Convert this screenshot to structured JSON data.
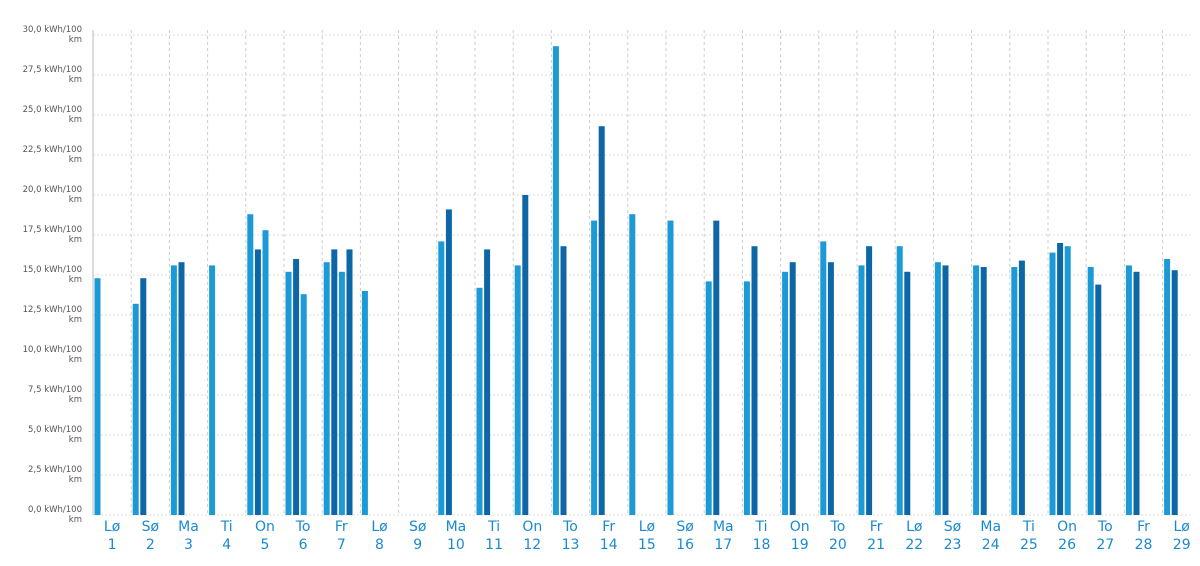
{
  "chart_data": {
    "type": "bar",
    "weekdays": [
      "Lø",
      "Sø",
      "Ma",
      "Ti",
      "On",
      "To",
      "Fr",
      "Lø",
      "Sø",
      "Ma",
      "Ti",
      "On",
      "To",
      "Fr",
      "Lø",
      "Sø",
      "Ma",
      "Ti",
      "On",
      "To",
      "Fr",
      "Lø",
      "Sø",
      "Ma",
      "Ti",
      "On",
      "To",
      "Fr",
      "Lø"
    ],
    "categories": [
      "1",
      "2",
      "3",
      "4",
      "5",
      "6",
      "7",
      "8",
      "9",
      "10",
      "11",
      "12",
      "13",
      "14",
      "15",
      "16",
      "17",
      "18",
      "19",
      "20",
      "21",
      "22",
      "23",
      "24",
      "25",
      "26",
      "27",
      "28",
      "29"
    ],
    "series": [
      {
        "color": "#1b9ad6",
        "values": [
          14.8,
          13.2,
          15.6,
          15.6,
          18.8,
          15.2,
          15.8,
          14.0,
          null,
          17.1,
          14.2,
          15.6,
          29.3,
          18.4,
          18.8,
          18.4,
          14.6,
          14.6,
          15.2,
          17.1,
          15.6,
          16.8,
          15.8,
          15.6,
          15.5,
          16.4,
          15.5,
          15.6,
          16.0
        ]
      },
      {
        "color": "#0d67a6",
        "values": [
          null,
          14.8,
          15.8,
          null,
          16.6,
          16.0,
          16.6,
          null,
          null,
          19.1,
          16.6,
          20.0,
          16.8,
          24.3,
          null,
          null,
          18.4,
          16.8,
          15.8,
          15.8,
          16.8,
          15.2,
          15.6,
          15.5,
          15.9,
          17.0,
          14.4,
          15.2,
          15.3
        ]
      },
      {
        "color": "#1b9ad6",
        "values": [
          null,
          null,
          null,
          null,
          17.8,
          13.8,
          15.2,
          null,
          null,
          null,
          null,
          null,
          null,
          null,
          null,
          null,
          null,
          null,
          null,
          null,
          null,
          null,
          null,
          null,
          null,
          16.8,
          null,
          null,
          null
        ]
      },
      {
        "color": "#0d67a6",
        "values": [
          null,
          null,
          null,
          null,
          null,
          null,
          16.6,
          null,
          null,
          null,
          null,
          null,
          null,
          null,
          null,
          null,
          null,
          null,
          null,
          null,
          null,
          null,
          null,
          null,
          null,
          null,
          null,
          null,
          null
        ]
      }
    ],
    "ylim": [
      0,
      30
    ],
    "yticks": [
      {
        "value": 0,
        "label": "0,0 kWh/100 km"
      },
      {
        "value": 2.5,
        "label": "2,5 kWh/100 km"
      },
      {
        "value": 5,
        "label": "5,0 kWh/100 km"
      },
      {
        "value": 7.5,
        "label": "7,5 kWh/100 km"
      },
      {
        "value": 10,
        "label": "10,0 kWh/100 km"
      },
      {
        "value": 12.5,
        "label": "12,5 kWh/100 km"
      },
      {
        "value": 15,
        "label": "15,0 kWh/100 km"
      },
      {
        "value": 17.5,
        "label": "17,5 kWh/100 km"
      },
      {
        "value": 20,
        "label": "20,0 kWh/100 km"
      },
      {
        "value": 22.5,
        "label": "22,5 kWh/100 km"
      },
      {
        "value": 25,
        "label": "25,0 kWh/100 km"
      },
      {
        "value": 27.5,
        "label": "27,5 kWh/100 km"
      },
      {
        "value": 30,
        "label": "30,0 kWh/100 km"
      }
    ],
    "grid": true
  }
}
